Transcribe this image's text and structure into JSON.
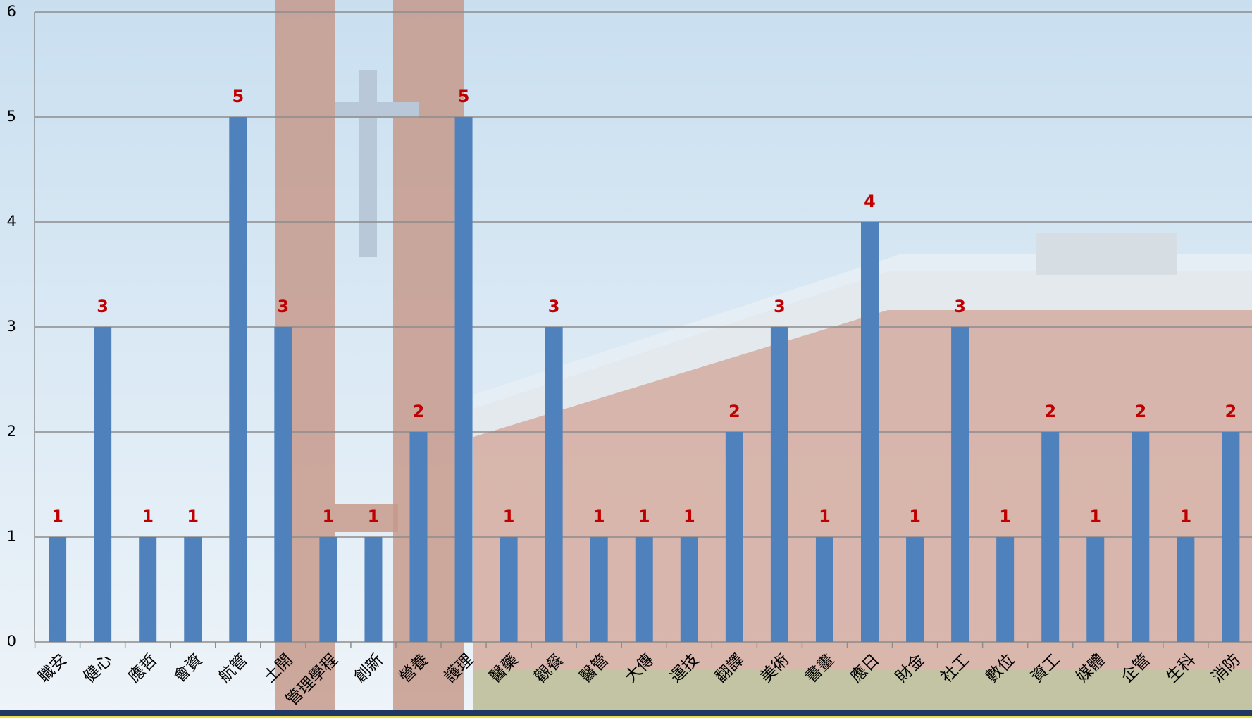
{
  "chart_data": {
    "type": "bar",
    "categories": [
      "職安",
      "健心",
      "應哲",
      "會資",
      "航管",
      "土開",
      "管理學程",
      "創新",
      "營養",
      "護理",
      "醫藥",
      "觀餐",
      "醫管",
      "大傳",
      "運技",
      "翻譯",
      "美術",
      "書畫",
      "應日",
      "財金",
      "社工",
      "數位",
      "資工",
      "媒體",
      "企管",
      "生科",
      "消防"
    ],
    "values": [
      1,
      3,
      1,
      1,
      5,
      3,
      1,
      1,
      2,
      5,
      1,
      3,
      1,
      1,
      1,
      2,
      3,
      1,
      4,
      1,
      3,
      1,
      2,
      1,
      2,
      1,
      2
    ],
    "color": "#4f81bd",
    "label_color": "#c00000",
    "ylim": [
      0,
      6
    ],
    "yticks": [
      0,
      1,
      2,
      3,
      4,
      5,
      6
    ],
    "grid": true
  }
}
